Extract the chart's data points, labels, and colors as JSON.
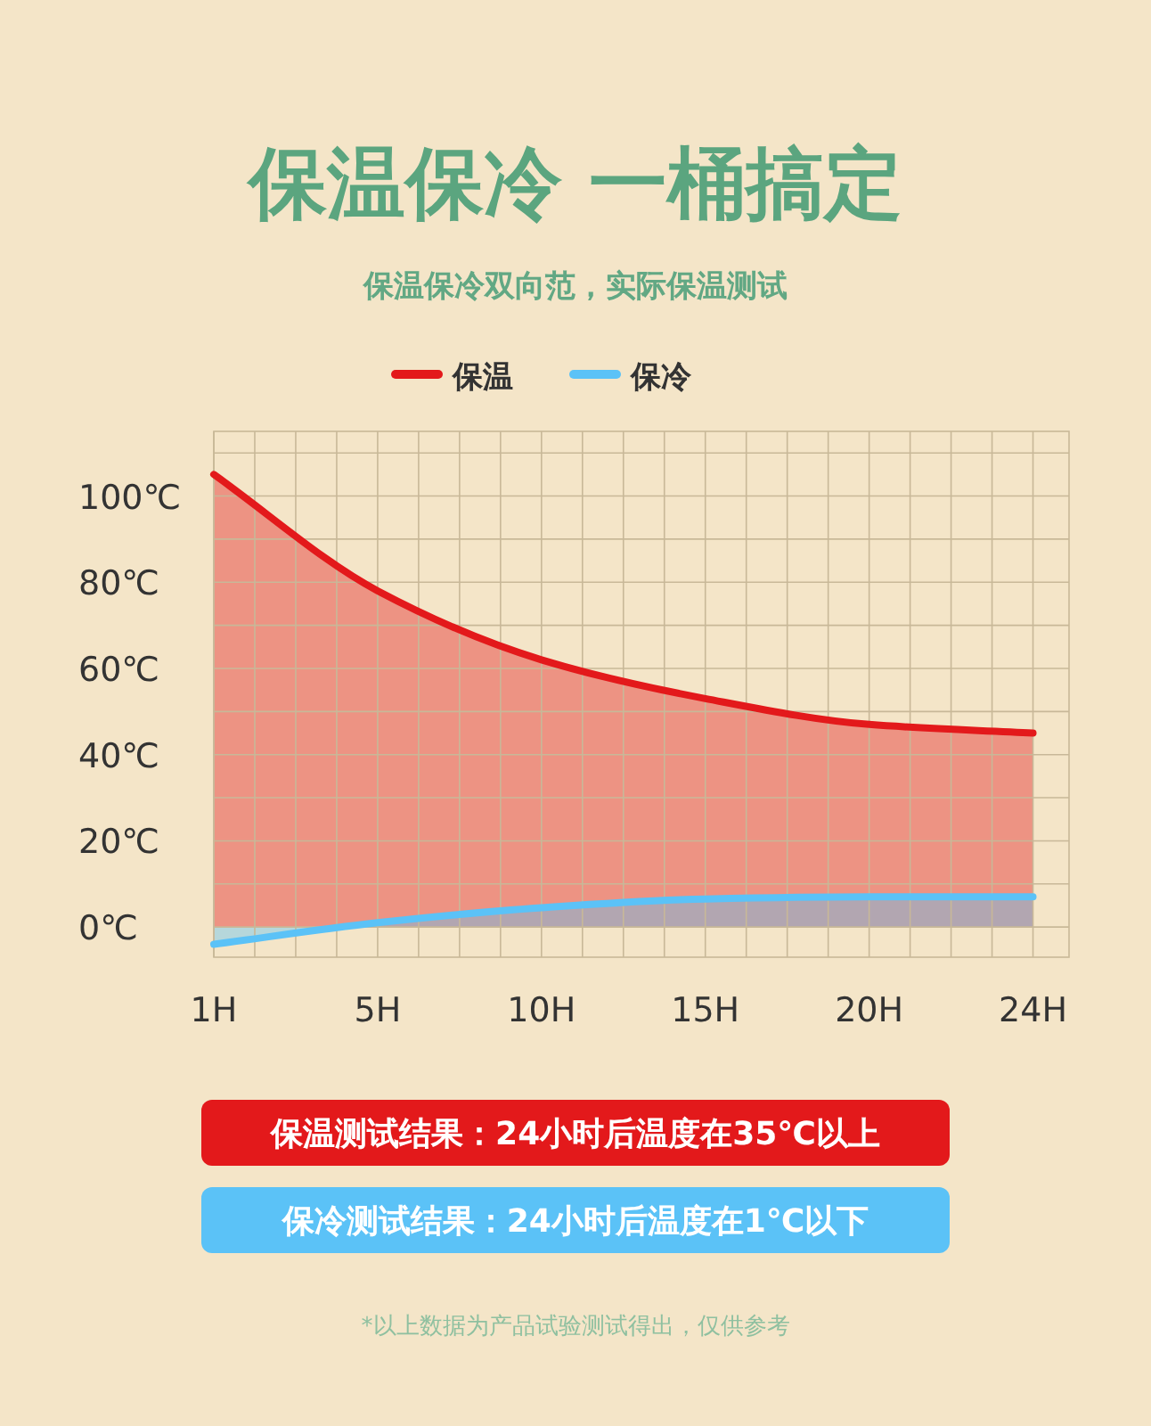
{
  "chart_data": {
    "type": "area",
    "title": "保温保冷 一桶搞定",
    "subtitle": "保温保冷双向范，实际保温测试",
    "categories": [
      "1H",
      "5H",
      "10H",
      "15H",
      "20H",
      "24H"
    ],
    "series": [
      {
        "name": "保温",
        "color": "#e3191b",
        "values": [
          105,
          78,
          62,
          53,
          47,
          45
        ]
      },
      {
        "name": "保冷",
        "color": "#5bc2f7",
        "values": [
          -4,
          1,
          4.5,
          6.5,
          7,
          7
        ]
      }
    ],
    "ylim": [
      -7,
      115
    ],
    "yticks": [
      {
        "value": 0,
        "label": "0℃"
      },
      {
        "value": 10,
        "label": null
      },
      {
        "value": 20,
        "label": "20℃"
      },
      {
        "value": 30,
        "label": null
      },
      {
        "value": 40,
        "label": "40℃"
      },
      {
        "value": 50,
        "label": null
      },
      {
        "value": 60,
        "label": "60℃"
      },
      {
        "value": 70,
        "label": null
      },
      {
        "value": 80,
        "label": "80℃"
      },
      {
        "value": 90,
        "label": null
      },
      {
        "value": 100,
        "label": "100℃"
      },
      {
        "value": 110,
        "label": null
      }
    ],
    "grid": true,
    "legend": "top",
    "annotations": [
      "保温测试结果：24小时后温度在35℃以上",
      "保冷测试结果：24小时后温度在1℃以下",
      "*以上数据为产品试验测试得出，仅供参考"
    ]
  }
}
